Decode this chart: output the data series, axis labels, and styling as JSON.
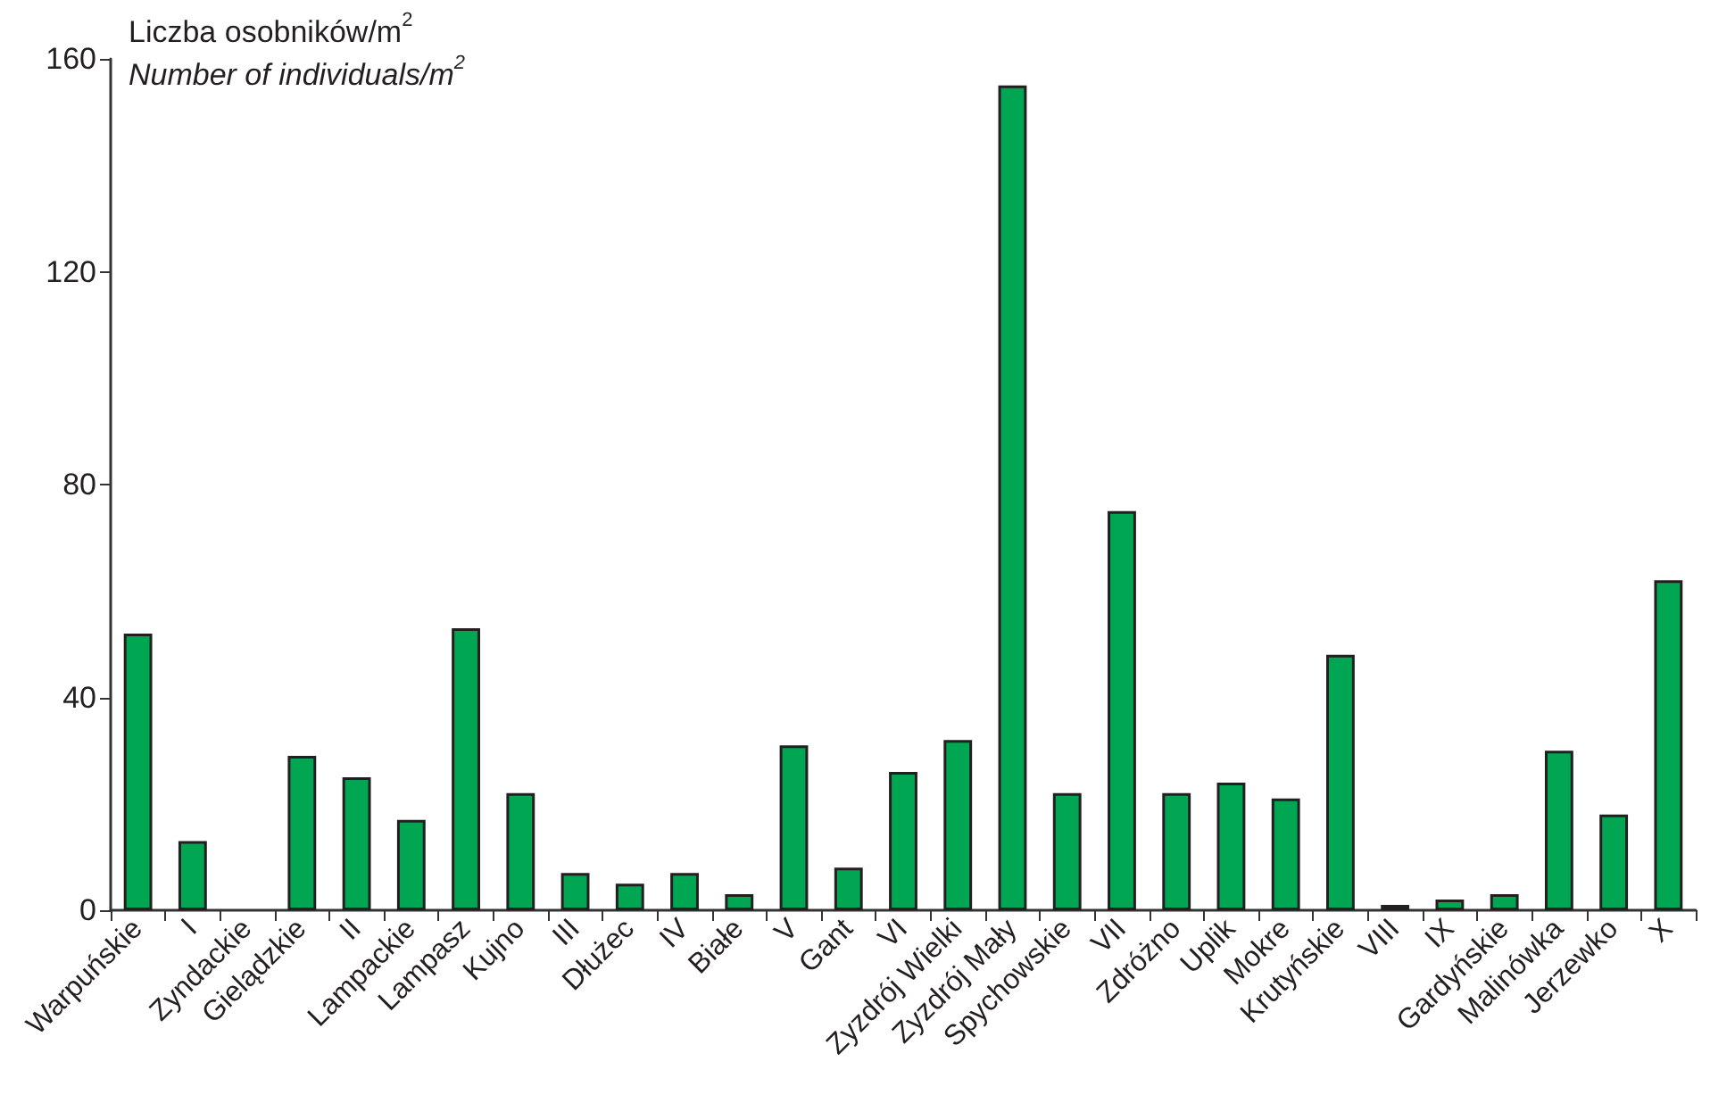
{
  "chart_data": {
    "type": "bar",
    "ylabel": "Liczba osobników/m$^{2}$\nNumber of individuals/m$^{2}$",
    "categories": [
      "Warpuńskie",
      "I",
      "Zyndackie",
      "Gielądzkie",
      "II",
      "Lampackie",
      "Lampasz",
      "Kujno",
      "III",
      "Dłużec",
      "IV",
      "Białe",
      "V",
      "Gant",
      "VI",
      "Zyzdrój Wielki",
      "Zyzdrój Mały",
      "Spychowskie",
      "VII",
      "Zdróżno",
      "Uplik",
      "Mokre",
      "Krutyńskie",
      "VIII",
      "IX",
      "Gardyńskie",
      "Malinówka",
      "Jerzewko",
      "X"
    ],
    "values": [
      52,
      13,
      0,
      29,
      25,
      17,
      53,
      22,
      7,
      5,
      7,
      3,
      31,
      8,
      26,
      32,
      155,
      22,
      75,
      22,
      24,
      21,
      48,
      1,
      2,
      3,
      30,
      18,
      62
    ],
    "color": "#00a651",
    "ylim": [
      0,
      160
    ],
    "yticks": [
      0,
      40,
      80,
      120,
      160
    ],
    "grid": false
  }
}
